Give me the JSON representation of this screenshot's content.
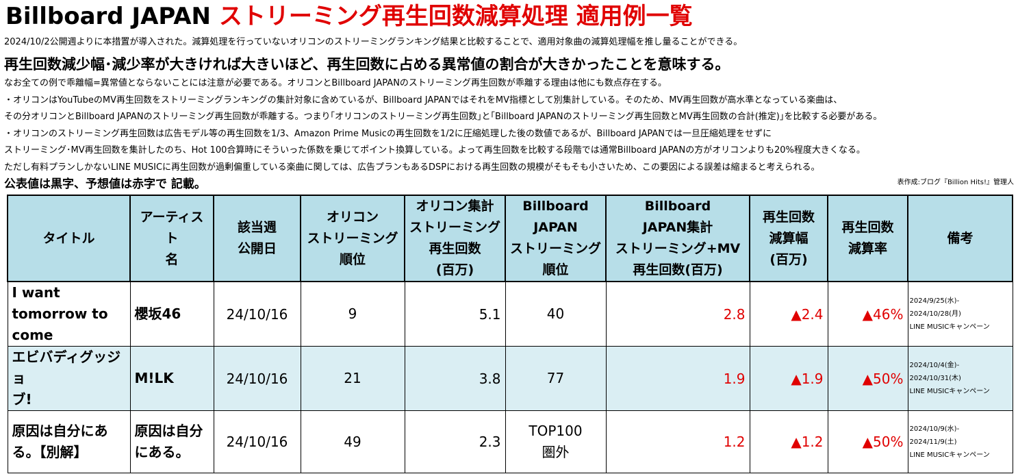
{
  "header": {
    "title_black": "Billboard JAPAN",
    "title_red": "ストリーミング再生回数減算処理 適用例一覧",
    "lead": "2024/10/2公開週よりに本措置が導入された。減算処理を行っていないオリコンのストリーミングランキング結果と比較することで、適用対象曲の減算処理幅を推し量ることができる。",
    "headline": "再生回数減少幅･減少率が大きければ大きいほど、再生回数に占める異常値の割合が大きかったことを意味する。",
    "notes": [
      "なお全ての例で乖離幅=異常値とならないことには注意が必要である。オリコンとBillboard JAPANのストリーミング再生回数が乖離する理由は他にも数点存在する。",
      "・オリコンはYouTubeのMV再生回数をストリーミングランキングの集計対象に含めているが、Billboard JAPANではそれをMV指標として別集計している。そのため、MV再生回数が高水準となっている楽曲は、",
      "その分オリコンとBillboard JAPANのストリーミング再生回数が乖離する。つまり｢オリコンのストリーミング再生回数｣と｢Billboard JAPANのストリーミング再生回数とMV再生回数の合計(推定)｣を比較する必要がある。",
      "・オリコンのストリーミング再生回数は広告モデル等の再生回数を1/3、Amazon Prime Musicの再生回数を1/2に圧縮処理した後の数値であるが、Billboard JAPANでは一旦圧縮処理をせずに",
      "ストリーミング･MV再生回数を集計したのち、Hot 100合算時にそういった係数を乗じてポイント換算している。よって再生回数を比較する段階では通常Billboard JAPANの方がオリコンよりも20%程度大きくなる。",
      "ただし有料プランしかないLINE MUSICに再生回数が過剰偏重している楽曲に関しては、広告プランもあるDSPにおける再生回数の規模がそもそも小さいため、この要因による誤差は縮まると考えられる。"
    ],
    "legend": "公表値は黒字、予想値は赤字で 記載。",
    "credit": "表作成:ブログ『Billion Hits!』管理人"
  },
  "table": {
    "columns": [
      "タイトル",
      "アーティスト\n名",
      "該当週\n公開日",
      "オリコン\nストリーミング\n順位",
      "オリコン集計\nストリーミング\n再生回数\n(百万)",
      "Billboard\nJAPAN\nストリーミング\n順位",
      "Billboard\nJAPAN集計\nストリーミング+MV\n再生回数(百万)",
      "再生回数\n減算幅\n(百万)",
      "再生回数\n減算率",
      "備考"
    ],
    "rows": [
      {
        "title": "I want\ntomorrow to\ncome",
        "artist": "櫻坂46",
        "date": "24/10/16",
        "oricon_rank": "9",
        "oricon_plays": "5.1",
        "bb_rank": "40",
        "bb_plays": "2.8",
        "reduction": "▲2.4",
        "rate": "▲46%",
        "note": "2024/9/25(水)-\n2024/10/28(月)\nLINE MUSICキャンペーン"
      },
      {
        "title": "エビバディグッジョ\nブ!",
        "artist": "M!LK",
        "date": "24/10/16",
        "oricon_rank": "21",
        "oricon_plays": "3.8",
        "bb_rank": "77",
        "bb_plays": "1.9",
        "reduction": "▲1.9",
        "rate": "▲50%",
        "note": "2024/10/4(金)-\n2024/10/31(木)\nLINE MUSICキャンペーン"
      },
      {
        "title": "原因は自分にあ\nる。【別解】",
        "artist": "原因は自分\nにある。",
        "date": "24/10/16",
        "oricon_rank": "49",
        "oricon_plays": "2.3",
        "bb_rank": "TOP100\n圏外",
        "bb_plays": "1.2",
        "reduction": "▲1.2",
        "rate": "▲50%",
        "note": "2024/10/9(水)-\n2024/11/9(土)\nLINE MUSICキャンペーン"
      }
    ]
  },
  "colors": {
    "accent_red": "#e00000",
    "header_bg": "#b7dee8",
    "alt_row_bg": "#daeef3"
  }
}
